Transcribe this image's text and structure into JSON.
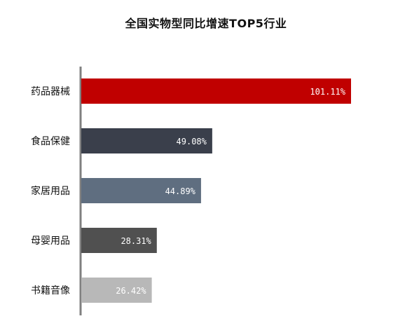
{
  "chart_data": {
    "type": "bar",
    "orientation": "horizontal",
    "title": "全国实物型同比增速TOP5行业",
    "categories": [
      "药品器械",
      "食品保健",
      "家居用品",
      "母婴用品",
      "书籍音像"
    ],
    "values": [
      101.11,
      49.08,
      44.89,
      28.31,
      26.42
    ],
    "value_labels": [
      "101.11%",
      "49.08%",
      "44.89%",
      "28.31%",
      "26.42%"
    ],
    "colors": [
      "#c00000",
      "#3a3f4b",
      "#5f6e80",
      "#505050",
      "#b8b8b8"
    ],
    "xlim": [
      0,
      101.11
    ],
    "grid": false,
    "legend": "none"
  }
}
